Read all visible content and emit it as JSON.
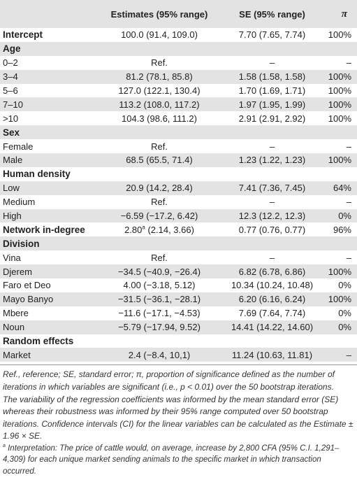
{
  "header": {
    "col1": "",
    "col2": "Estimates (95% range)",
    "col3": "SE (95% range)",
    "col4": "π"
  },
  "rows": [
    {
      "label": "Intercept",
      "estimate": "100.0 (91.4, 109.0)",
      "se": "7.70 (7.65, 7.74)",
      "pi": "100%",
      "bold": true
    },
    {
      "label": "Age",
      "estimate": "",
      "se": "",
      "pi": "",
      "section": true
    },
    {
      "label": "0–2",
      "estimate": "Ref.",
      "se": "–",
      "pi": "–"
    },
    {
      "label": "3–4",
      "estimate": "81.2 (78.1, 85.8)",
      "se": "1.58 (1.58, 1.58)",
      "pi": "100%"
    },
    {
      "label": "5–6",
      "estimate": "127.0 (122.1, 130.4)",
      "se": "1.70 (1.69, 1.71)",
      "pi": "100%"
    },
    {
      "label": "7–10",
      "estimate": "113.2 (108.0, 117.2)",
      "se": "1.97 (1.95, 1.99)",
      "pi": "100%"
    },
    {
      "label": ">10",
      "estimate": "104.3 (98.6, 111.2)",
      "se": "2.91 (2.91, 2.92)",
      "pi": "100%"
    },
    {
      "label": "Sex",
      "estimate": "",
      "se": "",
      "pi": "",
      "section": true
    },
    {
      "label": "Female",
      "estimate": "Ref.",
      "se": "–",
      "pi": "–"
    },
    {
      "label": "Male",
      "estimate": "68.5 (65.5, 71.4)",
      "se": "1.23 (1.22, 1.23)",
      "pi": "100%"
    },
    {
      "label": "Human density",
      "estimate": "",
      "se": "",
      "pi": "",
      "section": true
    },
    {
      "label": "Low",
      "estimate": "20.9 (14.2, 28.4)",
      "se": "7.41 (7.36, 7.45)",
      "pi": "64%"
    },
    {
      "label": "Medium",
      "estimate": "Ref.",
      "se": "–",
      "pi": "–"
    },
    {
      "label": "High",
      "estimate": "−6.59 (−17.2, 6.42)",
      "se": "12.3 (12.2, 12.3)",
      "pi": "0%"
    },
    {
      "label": "Network in-degree",
      "estimate": "2.80",
      "estimate_sup": "a",
      "estimate_rest": " (2.14, 3.66)",
      "se": "0.77 (0.76, 0.77)",
      "pi": "96%",
      "bold": true
    },
    {
      "label": "Division",
      "estimate": "",
      "se": "",
      "pi": "",
      "section": true
    },
    {
      "label": "Vina",
      "estimate": "Ref.",
      "se": "–",
      "pi": "–"
    },
    {
      "label": "Djerem",
      "estimate": "−34.5 (−40.9, −26.4)",
      "se": "6.82 (6.78, 6.86)",
      "pi": "100%"
    },
    {
      "label": "Faro et Deo",
      "estimate": "4.00 (−3.18, 5.12)",
      "se": "10.34 (10.24, 10.48)",
      "pi": "0%"
    },
    {
      "label": "Mayo Banyo",
      "estimate": "−31.5 (−36.1, −28.1)",
      "se": "6.20 (6.16, 6.24)",
      "pi": "100%"
    },
    {
      "label": "Mbere",
      "estimate": "−11.6 (−17.1, −4.53)",
      "se": "7.69 (7.64, 7.74)",
      "pi": "0%"
    },
    {
      "label": "Noun",
      "estimate": "−5.79 (−17.94, 9.52)",
      "se": "14.41 (14.22, 14.60)",
      "pi": "0%"
    },
    {
      "label": "Random effects",
      "estimate": "",
      "se": "",
      "pi": "",
      "section": true
    },
    {
      "label": "Market",
      "estimate": "2.4 (−8.4, 10,1)",
      "se": "11.24 (10.63, 11.81)",
      "pi": "–"
    }
  ],
  "notes": {
    "abbrev": "Ref., reference; SE, standard error; π, proportion of significance defined as the number of iterations in which variables are significant (i.e., p < 0.01) over the 50 bootstrap iterations.",
    "variability": "The variability of the regression coefficients was informed by the mean standard error (SE) whereas their robustness was informed by their 95% range computed over 50 bootstrap iterations. Confidence intervals (CI) for the linear variables can be calculated as the Estimate ± 1.96 × SE.",
    "footnote_mark": "a",
    "footnote": " Interpretation: The price of cattle would, on average, increase by 2,800 CFA (95% C.I. 1,291–4,309) for each unique market sending animals to the specific market in which transaction occurred."
  }
}
